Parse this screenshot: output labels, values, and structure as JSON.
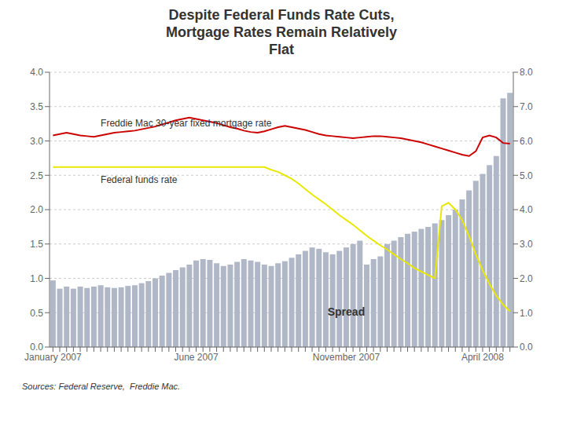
{
  "chart_data": {
    "type": "bar",
    "title": "Despite Federal Funds Rate Cuts,\nMortgage Rates Remain Relatively\nFlat",
    "categories": [
      "January 2007",
      null,
      null,
      null,
      null,
      null,
      null,
      null,
      null,
      null,
      null,
      null,
      null,
      null,
      null,
      null,
      null,
      null,
      null,
      null,
      null,
      "June 2007",
      null,
      null,
      null,
      null,
      null,
      null,
      null,
      null,
      null,
      null,
      null,
      null,
      null,
      null,
      null,
      null,
      null,
      null,
      null,
      null,
      null,
      "November 2007",
      null,
      null,
      null,
      null,
      null,
      null,
      null,
      null,
      null,
      null,
      null,
      null,
      null,
      null,
      null,
      null,
      null,
      null,
      null,
      "April 2008",
      null,
      null,
      null,
      null
    ],
    "series": [
      {
        "name": "Spread",
        "type": "bar",
        "color": "#b0b8c8",
        "values": [
          0.97,
          0.85,
          0.88,
          0.85,
          0.88,
          0.86,
          0.88,
          0.9,
          0.87,
          0.86,
          0.87,
          0.89,
          0.9,
          0.93,
          0.96,
          1.0,
          1.04,
          1.08,
          1.12,
          1.16,
          1.2,
          1.26,
          1.28,
          1.27,
          1.22,
          1.18,
          1.2,
          1.24,
          1.28,
          1.26,
          1.24,
          1.2,
          1.18,
          1.22,
          1.25,
          1.3,
          1.35,
          1.4,
          1.45,
          1.43,
          1.38,
          1.35,
          1.4,
          1.45,
          1.5,
          1.55,
          1.2,
          1.28,
          1.32,
          1.5,
          1.55,
          1.6,
          1.65,
          1.68,
          1.72,
          1.75,
          1.8,
          1.85,
          1.92,
          2.0,
          2.15,
          2.28,
          2.42,
          2.52,
          2.65,
          2.78,
          3.62,
          3.7
        ]
      },
      {
        "name": "Federal funds rate",
        "type": "line",
        "color": "#e8e800",
        "values": [
          2.62,
          2.62,
          2.62,
          2.62,
          2.62,
          2.62,
          2.62,
          2.62,
          2.62,
          2.62,
          2.62,
          2.62,
          2.62,
          2.62,
          2.62,
          2.62,
          2.62,
          2.62,
          2.62,
          2.62,
          2.62,
          2.62,
          2.62,
          2.62,
          2.62,
          2.62,
          2.62,
          2.62,
          2.62,
          2.62,
          2.62,
          2.62,
          2.58,
          2.55,
          2.5,
          2.45,
          2.38,
          2.3,
          2.22,
          2.15,
          2.08,
          2.0,
          1.92,
          1.85,
          1.78,
          1.7,
          1.62,
          1.55,
          1.48,
          1.42,
          1.35,
          1.28,
          1.22,
          1.15,
          1.1,
          1.05,
          1.0,
          2.05,
          2.1,
          2.0,
          1.85,
          1.62,
          1.35,
          1.12,
          0.92,
          0.75,
          0.62,
          0.52
        ]
      },
      {
        "name": "Freddie Mac 30-year fixed mortgage rate",
        "type": "line",
        "color": "#cc0000",
        "values": [
          3.08,
          3.1,
          3.12,
          3.1,
          3.08,
          3.07,
          3.06,
          3.08,
          3.1,
          3.12,
          3.13,
          3.14,
          3.15,
          3.17,
          3.19,
          3.21,
          3.24,
          3.27,
          3.3,
          3.32,
          3.34,
          3.32,
          3.3,
          3.28,
          3.26,
          3.23,
          3.2,
          3.18,
          3.15,
          3.13,
          3.12,
          3.14,
          3.17,
          3.2,
          3.22,
          3.2,
          3.18,
          3.16,
          3.13,
          3.1,
          3.08,
          3.07,
          3.06,
          3.05,
          3.04,
          3.05,
          3.06,
          3.07,
          3.07,
          3.06,
          3.05,
          3.04,
          3.02,
          3.0,
          2.98,
          2.95,
          2.92,
          2.89,
          2.86,
          2.83,
          2.8,
          2.78,
          2.85,
          3.05,
          3.08,
          3.05,
          2.97,
          2.96
        ]
      }
    ],
    "ylim": [
      0.0,
      4.0
    ],
    "yticks": [
      {
        "value": 0.0,
        "label": "0.0"
      },
      0.5,
      {
        "value": 1.0,
        "label": "1.0"
      },
      1.5,
      {
        "value": 2.0,
        "label": "2.0"
      },
      2.5,
      {
        "value": 3.0,
        "label": "3.0"
      },
      3.5,
      {
        "value": 4.0,
        "label": "4.0"
      }
    ],
    "y2lim": [
      0.0,
      8.0
    ],
    "y2ticks": [
      {
        "value": 0.0,
        "label": "0.0"
      },
      {
        "value": 1.0,
        "label": "1.0"
      },
      {
        "value": 2.0,
        "label": "2.0"
      },
      {
        "value": 3.0,
        "label": "3.0"
      },
      {
        "value": 4.0,
        "label": "4.0"
      },
      {
        "value": 5.0,
        "label": "5.0"
      },
      {
        "value": 6.0,
        "label": "6.0"
      },
      {
        "value": 7.0,
        "label": "7.0"
      },
      {
        "value": 8.0,
        "label": "8.0"
      }
    ],
    "grid": true,
    "annotations": [
      "Sources: Federal Reserve,  Freddie Mac."
    ]
  }
}
